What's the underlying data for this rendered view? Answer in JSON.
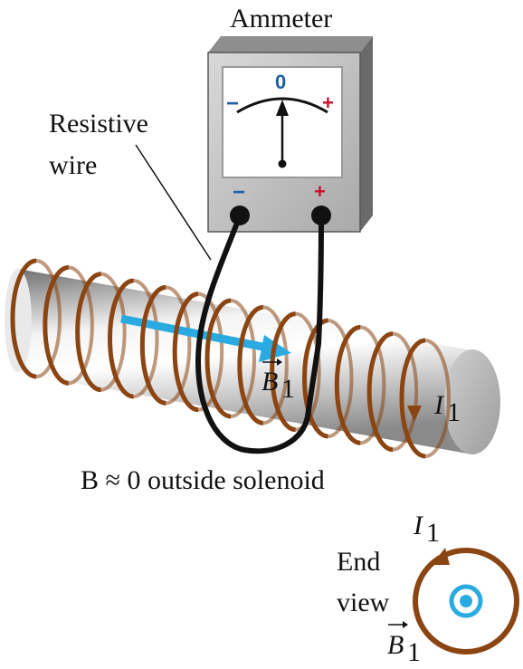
{
  "labels": {
    "ammeter": "Ammeter",
    "resistive_line1": "Resistive",
    "resistive_line2": "wire",
    "b_field_symbol": "B",
    "b_field_sub": "1",
    "current_symbol": "I",
    "current_sub": "1",
    "outside_text": "B ≈ 0 outside solenoid",
    "end_view_line1": "End",
    "end_view_line2": "view"
  },
  "meter": {
    "scale_zero": "0",
    "scale_minus": "−",
    "scale_plus": "+",
    "terminal_minus": "−",
    "terminal_plus": "+"
  },
  "colors": {
    "coil": "#8B4513",
    "field_arrow": "#29ABE2",
    "minus": "#1F5FA8",
    "plus": "#C8102E"
  },
  "icons": {
    "b_field_vector": "vector-arrow-icon",
    "end_view_dot": "out-of-page-dot-icon"
  }
}
